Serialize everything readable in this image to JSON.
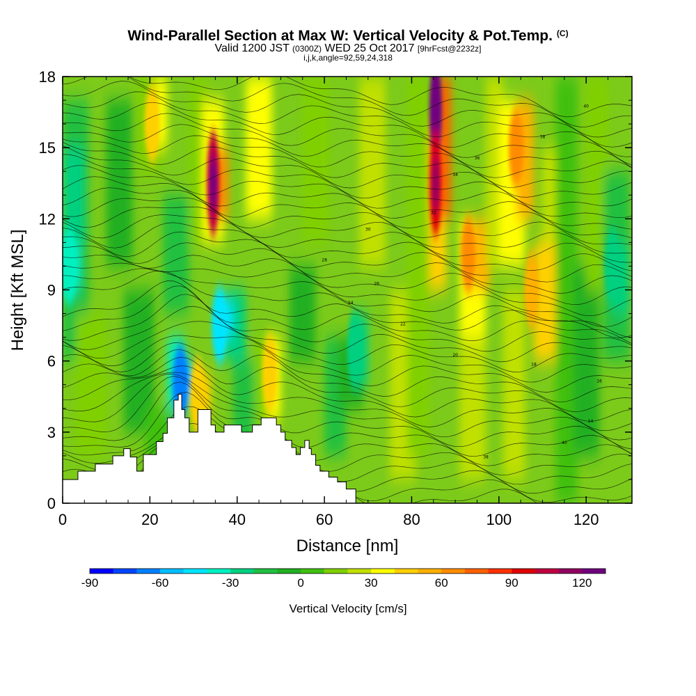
{
  "header": {
    "title": "Wind-Parallel Section at Max W: Vertical Velocity & Pot.Temp.",
    "title_tag": "(C)",
    "valid_prefix": "Valid 1200 JST",
    "valid_zulu": "(0300Z)",
    "valid_date": "WED 25 Oct 2017",
    "forecast": "[9hrFcst@2232z]",
    "params": "i,j,k,angle=92,59,24,318"
  },
  "chart_data": {
    "type": "heatmap",
    "xlabel": "Distance [nm]",
    "ylabel": "Height [Kft MSL]",
    "xlim": [
      0,
      130.5
    ],
    "ylim": [
      0,
      18
    ],
    "xticks": [
      0,
      20,
      40,
      60,
      80,
      100,
      120
    ],
    "yticks": [
      0,
      3,
      6,
      9,
      12,
      15,
      18
    ],
    "colorbar": {
      "label": "Vertical Velocity [cm/s]",
      "range": [
        -90,
        130
      ],
      "step": 10,
      "tick_values": [
        -90,
        -60,
        -30,
        0,
        30,
        60,
        90,
        120
      ],
      "tick_labels": [
        "-90",
        "-60",
        "-30",
        "0",
        "30",
        "60",
        "90",
        "120"
      ],
      "colors": [
        "#0000ff",
        "#0045ff",
        "#0080ff",
        "#00bfff",
        "#00e5ff",
        "#00f0c0",
        "#00d080",
        "#20c040",
        "#20b020",
        "#40c010",
        "#80d000",
        "#c0e000",
        "#ffff00",
        "#ffd000",
        "#ffb000",
        "#ff8c00",
        "#ff6000",
        "#ff3000",
        "#e00000",
        "#c00040",
        "#900060",
        "#700080"
      ]
    },
    "terrain_profile": {
      "x": [
        0,
        3.5,
        7.5,
        11.5,
        14,
        15.5,
        17,
        18.5,
        21.5,
        23,
        24,
        25.5,
        26.5,
        27.3,
        28,
        29,
        31,
        34,
        35,
        37,
        39.5,
        41,
        43.5,
        45.5,
        49,
        50,
        51,
        52.5,
        53.5,
        54.5,
        55.5,
        56.5,
        57,
        58,
        59,
        61,
        63,
        65,
        67.2
      ],
      "height": [
        1,
        1.35,
        1.65,
        2,
        2.3,
        1.95,
        1.35,
        2.05,
        2.6,
        2.95,
        3.6,
        4.35,
        4.6,
        3.95,
        3.6,
        3,
        3.95,
        3.3,
        3,
        3.3,
        3.3,
        3,
        3.3,
        3.6,
        3.3,
        3,
        2.65,
        2.35,
        2.05,
        2.35,
        2.65,
        2.3,
        2.05,
        1.6,
        1.35,
        1.1,
        0.9,
        0.6,
        0.35
      ]
    },
    "theta_contour_levels": [
      "14",
      "16",
      "18",
      "20",
      "22",
      "24",
      "26",
      "28",
      "30",
      "32",
      "34",
      "36",
      "38",
      "40"
    ],
    "vertical_velocity_features": [
      {
        "x": 34.5,
        "z": 13.5,
        "w": 100
      },
      {
        "x": 85.5,
        "z": 16.5,
        "w": 130
      },
      {
        "x": 85.5,
        "z": 13.5,
        "w": 95
      },
      {
        "x": 93,
        "z": 10.5,
        "w": 60
      },
      {
        "x": 104,
        "z": 15,
        "w": 65
      },
      {
        "x": 107.5,
        "z": 9,
        "w": 55
      },
      {
        "x": 20.5,
        "z": 16,
        "w": 40
      },
      {
        "x": 27,
        "z": 5,
        "w": -65
      },
      {
        "x": 36,
        "z": 7.5,
        "w": -50
      },
      {
        "x": 1.5,
        "z": 10,
        "w": -40
      },
      {
        "x": 47.5,
        "z": 5.5,
        "w": 40
      },
      {
        "x": 31,
        "z": 4.5,
        "w": 45
      },
      {
        "x": 67,
        "z": 6.5,
        "w": -30
      },
      {
        "x": 126,
        "z": 10,
        "w": -25
      }
    ]
  }
}
